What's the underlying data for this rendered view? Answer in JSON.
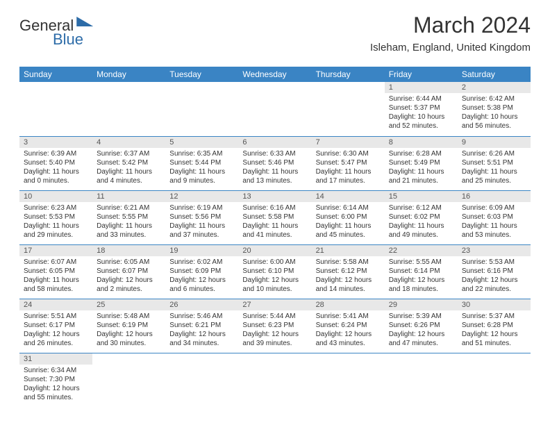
{
  "logo": {
    "part1": "General",
    "part2": "Blue"
  },
  "title": "March 2024",
  "location": "Isleham, England, United Kingdom",
  "dayHeaders": [
    "Sunday",
    "Monday",
    "Tuesday",
    "Wednesday",
    "Thursday",
    "Friday",
    "Saturday"
  ],
  "colors": {
    "headerBg": "#3a84c4",
    "headerText": "#ffffff",
    "dayNumBg": "#e8e8e8",
    "borderColor": "#3a84c4",
    "logoBlue": "#2d6ca8"
  },
  "font": {
    "titleSize": 32,
    "subtitleSize": 15,
    "thSize": 12,
    "cellSize": 10
  },
  "firstDayOffset": 5,
  "daysInMonth": 31,
  "days": {
    "1": {
      "sunrise": "6:44 AM",
      "sunset": "5:37 PM",
      "daylight": "10 hours and 52 minutes."
    },
    "2": {
      "sunrise": "6:42 AM",
      "sunset": "5:38 PM",
      "daylight": "10 hours and 56 minutes."
    },
    "3": {
      "sunrise": "6:39 AM",
      "sunset": "5:40 PM",
      "daylight": "11 hours and 0 minutes."
    },
    "4": {
      "sunrise": "6:37 AM",
      "sunset": "5:42 PM",
      "daylight": "11 hours and 4 minutes."
    },
    "5": {
      "sunrise": "6:35 AM",
      "sunset": "5:44 PM",
      "daylight": "11 hours and 9 minutes."
    },
    "6": {
      "sunrise": "6:33 AM",
      "sunset": "5:46 PM",
      "daylight": "11 hours and 13 minutes."
    },
    "7": {
      "sunrise": "6:30 AM",
      "sunset": "5:47 PM",
      "daylight": "11 hours and 17 minutes."
    },
    "8": {
      "sunrise": "6:28 AM",
      "sunset": "5:49 PM",
      "daylight": "11 hours and 21 minutes."
    },
    "9": {
      "sunrise": "6:26 AM",
      "sunset": "5:51 PM",
      "daylight": "11 hours and 25 minutes."
    },
    "10": {
      "sunrise": "6:23 AM",
      "sunset": "5:53 PM",
      "daylight": "11 hours and 29 minutes."
    },
    "11": {
      "sunrise": "6:21 AM",
      "sunset": "5:55 PM",
      "daylight": "11 hours and 33 minutes."
    },
    "12": {
      "sunrise": "6:19 AM",
      "sunset": "5:56 PM",
      "daylight": "11 hours and 37 minutes."
    },
    "13": {
      "sunrise": "6:16 AM",
      "sunset": "5:58 PM",
      "daylight": "11 hours and 41 minutes."
    },
    "14": {
      "sunrise": "6:14 AM",
      "sunset": "6:00 PM",
      "daylight": "11 hours and 45 minutes."
    },
    "15": {
      "sunrise": "6:12 AM",
      "sunset": "6:02 PM",
      "daylight": "11 hours and 49 minutes."
    },
    "16": {
      "sunrise": "6:09 AM",
      "sunset": "6:03 PM",
      "daylight": "11 hours and 53 minutes."
    },
    "17": {
      "sunrise": "6:07 AM",
      "sunset": "6:05 PM",
      "daylight": "11 hours and 58 minutes."
    },
    "18": {
      "sunrise": "6:05 AM",
      "sunset": "6:07 PM",
      "daylight": "12 hours and 2 minutes."
    },
    "19": {
      "sunrise": "6:02 AM",
      "sunset": "6:09 PM",
      "daylight": "12 hours and 6 minutes."
    },
    "20": {
      "sunrise": "6:00 AM",
      "sunset": "6:10 PM",
      "daylight": "12 hours and 10 minutes."
    },
    "21": {
      "sunrise": "5:58 AM",
      "sunset": "6:12 PM",
      "daylight": "12 hours and 14 minutes."
    },
    "22": {
      "sunrise": "5:55 AM",
      "sunset": "6:14 PM",
      "daylight": "12 hours and 18 minutes."
    },
    "23": {
      "sunrise": "5:53 AM",
      "sunset": "6:16 PM",
      "daylight": "12 hours and 22 minutes."
    },
    "24": {
      "sunrise": "5:51 AM",
      "sunset": "6:17 PM",
      "daylight": "12 hours and 26 minutes."
    },
    "25": {
      "sunrise": "5:48 AM",
      "sunset": "6:19 PM",
      "daylight": "12 hours and 30 minutes."
    },
    "26": {
      "sunrise": "5:46 AM",
      "sunset": "6:21 PM",
      "daylight": "12 hours and 34 minutes."
    },
    "27": {
      "sunrise": "5:44 AM",
      "sunset": "6:23 PM",
      "daylight": "12 hours and 39 minutes."
    },
    "28": {
      "sunrise": "5:41 AM",
      "sunset": "6:24 PM",
      "daylight": "12 hours and 43 minutes."
    },
    "29": {
      "sunrise": "5:39 AM",
      "sunset": "6:26 PM",
      "daylight": "12 hours and 47 minutes."
    },
    "30": {
      "sunrise": "5:37 AM",
      "sunset": "6:28 PM",
      "daylight": "12 hours and 51 minutes."
    },
    "31": {
      "sunrise": "6:34 AM",
      "sunset": "7:30 PM",
      "daylight": "12 hours and 55 minutes."
    }
  },
  "labels": {
    "sunrise": "Sunrise: ",
    "sunset": "Sunset: ",
    "daylight": "Daylight: "
  }
}
